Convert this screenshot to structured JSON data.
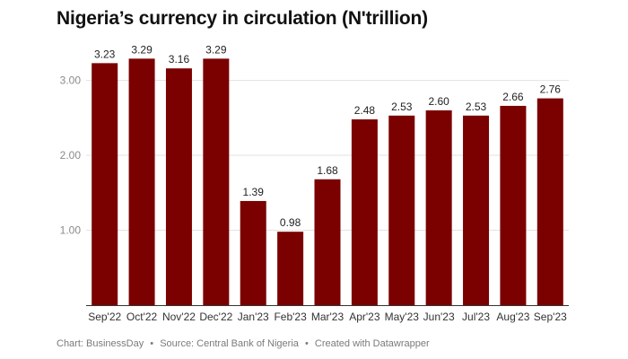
{
  "title": "Nigeria’s currency in circulation (N'trillion)",
  "footer": {
    "chart_credit": "Chart: BusinessDay",
    "source": "Source: Central Bank of Nigeria",
    "created_with": "Created with Datawrapper",
    "separator": "•"
  },
  "colors": {
    "bar": "#7b0000",
    "grid": "#e2e2e2",
    "axis": "#333333",
    "tick_text": "#8a8a8a"
  },
  "chart_data": {
    "type": "bar",
    "title": "Nigeria’s currency in circulation (N'trillion)",
    "xlabel": "",
    "ylabel": "",
    "categories": [
      "Sep'22",
      "Oct'22",
      "Nov'22",
      "Dec'22",
      "Jan'23",
      "Feb'23",
      "Mar'23",
      "Apr'23",
      "May'23",
      "Jun'23",
      "Jul'23",
      "Aug'23",
      "Sep'23"
    ],
    "values": [
      3.23,
      3.29,
      3.16,
      3.29,
      1.39,
      0.98,
      1.68,
      2.48,
      2.53,
      2.6,
      2.53,
      2.66,
      2.76
    ],
    "value_labels": [
      "3.23",
      "3.29",
      "3.16",
      "3.29",
      "1.39",
      "0.98",
      "1.68",
      "2.48",
      "2.53",
      "2.60",
      "2.53",
      "2.66",
      "2.76"
    ],
    "y_ticks": [
      1,
      2,
      3
    ],
    "y_tick_labels": [
      "1.00",
      "2.00",
      "3.00"
    ],
    "ylim": [
      0,
      3.45
    ],
    "grid": true
  }
}
